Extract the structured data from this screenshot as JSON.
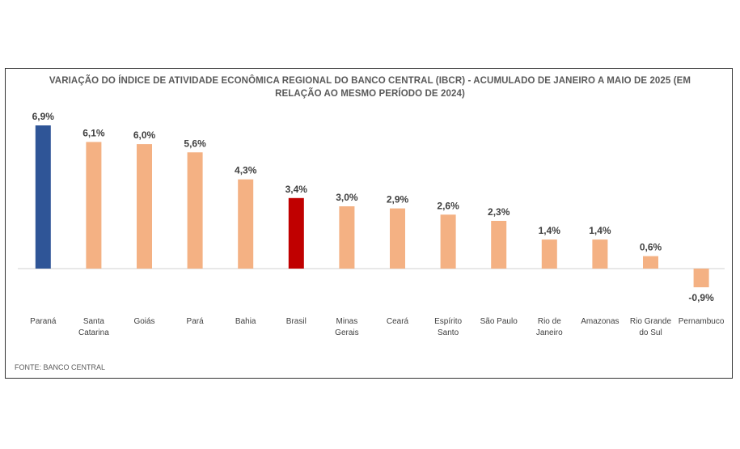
{
  "chart_data": {
    "type": "bar",
    "title": "VARIAÇÃO DO ÍNDICE DE ATIVIDADE ECONÔMICA REGIONAL DO BANCO CENTRAL (IBCR) - ACUMULADO DE JANEIRO A MAIO DE 2025 (EM RELAÇÃO AO MESMO PERÍODO DE 2024)",
    "categories": [
      "Paraná",
      "Santa Catarina",
      "Goiás",
      "Pará",
      "Bahia",
      "Brasil",
      "Minas Gerais",
      "Ceará",
      "Espírito Santo",
      "São Paulo",
      "Rio de Janeiro",
      "Amazonas",
      "Rio Grande do Sul",
      "Pernambuco"
    ],
    "category_lines": [
      [
        "Paraná"
      ],
      [
        "Santa",
        "Catarina"
      ],
      [
        "Goiás"
      ],
      [
        "Pará"
      ],
      [
        "Bahia"
      ],
      [
        "Brasil"
      ],
      [
        "Minas",
        "Gerais"
      ],
      [
        "Ceará"
      ],
      [
        "Espírito",
        "Santo"
      ],
      [
        "São Paulo"
      ],
      [
        "Rio de",
        "Janeiro"
      ],
      [
        "Amazonas"
      ],
      [
        "Rio Grande",
        "do Sul"
      ],
      [
        "Pernambuco"
      ]
    ],
    "values": [
      6.9,
      6.1,
      6.0,
      5.6,
      4.3,
      3.4,
      3.0,
      2.9,
      2.6,
      2.3,
      1.4,
      1.4,
      0.6,
      -0.9
    ],
    "value_labels": [
      "6,9%",
      "6,1%",
      "6,0%",
      "5,6%",
      "4,3%",
      "3,4%",
      "3,0%",
      "2,9%",
      "2,6%",
      "2,3%",
      "1,4%",
      "1,4%",
      "0,6%",
      "-0,9%"
    ],
    "bar_colors": [
      "#2f5597",
      "#f4b183",
      "#f4b183",
      "#f4b183",
      "#f4b183",
      "#c00000",
      "#f4b183",
      "#f4b183",
      "#f4b183",
      "#f4b183",
      "#f4b183",
      "#f4b183",
      "#f4b183",
      "#f4b183"
    ],
    "ylim": [
      -0.9,
      6.9
    ],
    "gridlines": false,
    "legend": "none",
    "source": "FONTE: BANCO CENTRAL"
  },
  "colors": {
    "highlight": "#2f5597",
    "national": "#c00000",
    "default": "#f4b183",
    "baseline": "#d0d0d0"
  }
}
